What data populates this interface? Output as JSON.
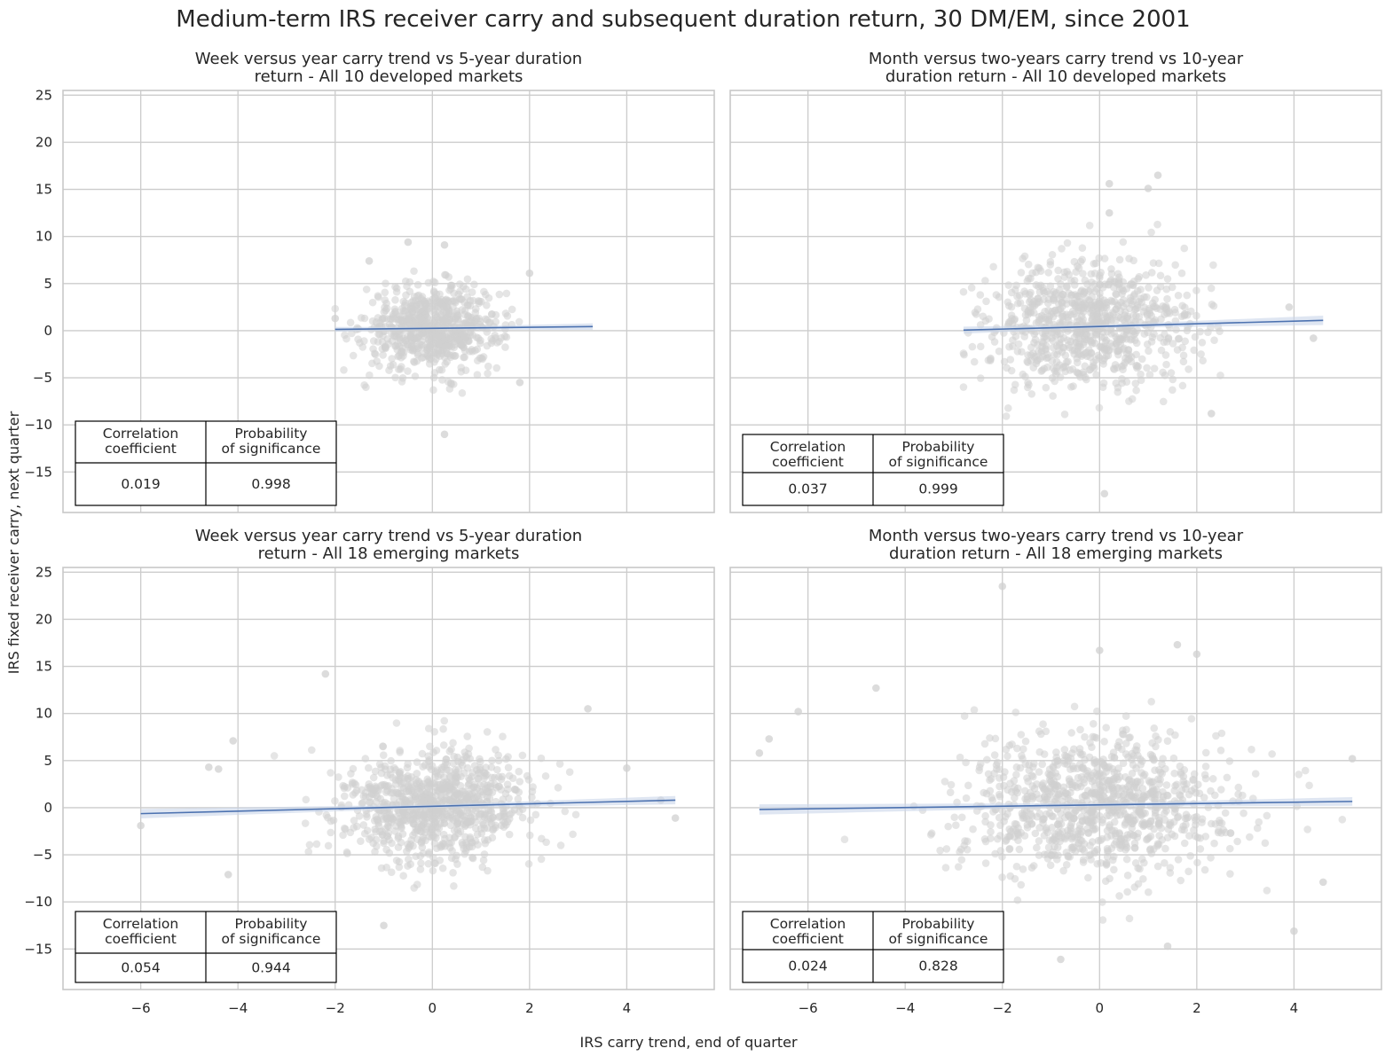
{
  "figure": {
    "title": "Medium-term IRS receiver carry and subsequent duration return, 30 DM/EM, since 2001",
    "xlabel": "IRS carry trend, end of quarter",
    "ylabel": "IRS fixed receiver carry, next quarter"
  },
  "colors": {
    "points": "#d0d0d0",
    "line": "#4c72b0",
    "band": "#c9d6ea"
  },
  "chart_data": [
    {
      "type": "scatter",
      "title_lines": [
        "Week versus year carry trend vs 5-year duration",
        "return - All 10 developed markets"
      ],
      "xlim": [
        -7.6,
        5.8
      ],
      "ylim": [
        -19.3,
        25.5
      ],
      "xticks": [
        -6,
        -4,
        -2,
        0,
        2,
        4
      ],
      "yticks": [
        -15,
        -10,
        -5,
        0,
        5,
        10,
        15,
        20,
        25
      ],
      "show_xticks": false,
      "show_yticks": true,
      "x_range": [
        -2.0,
        3.3
      ],
      "cloud": {
        "cx": 0.0,
        "cy": 0.3,
        "sx": 0.7,
        "sy": 2.2,
        "n": 700
      },
      "outliers": [
        [
          -1.3,
          7.4
        ],
        [
          -0.5,
          9.4
        ],
        [
          0.25,
          9.1
        ],
        [
          2.0,
          6.1
        ],
        [
          0.25,
          -11.0
        ],
        [
          -2.0,
          1.3
        ],
        [
          1.8,
          -5.5
        ]
      ],
      "regression": {
        "intercept": 0.25,
        "slope": 0.055,
        "band": 0.35
      },
      "stats_header": [
        "Correlation\ncoefficient",
        "Probability\nof significance"
      ],
      "stats_values": [
        "0.019",
        "0.998"
      ]
    },
    {
      "type": "scatter",
      "title_lines": [
        "Month versus two-years carry trend vs 10-year",
        "duration return - All 10 developed markets"
      ],
      "xlim": [
        -7.6,
        5.8
      ],
      "ylim": [
        -19.3,
        25.5
      ],
      "xticks": [
        -6,
        -4,
        -2,
        0,
        2,
        4
      ],
      "yticks": [
        -15,
        -10,
        -5,
        0,
        5,
        10,
        15,
        20,
        25
      ],
      "show_xticks": false,
      "show_yticks": false,
      "x_range": [
        -2.8,
        4.6
      ],
      "cloud": {
        "cx": -0.2,
        "cy": 0.6,
        "sx": 1.05,
        "sy": 3.3,
        "n": 850
      },
      "outliers": [
        [
          0.2,
          15.6
        ],
        [
          1.2,
          16.5
        ],
        [
          1.0,
          15.1
        ],
        [
          0.2,
          12.5
        ],
        [
          0.1,
          -17.3
        ],
        [
          3.9,
          2.5
        ],
        [
          4.4,
          -0.8
        ],
        [
          2.3,
          -8.8
        ]
      ],
      "regression": {
        "intercept": 0.45,
        "slope": 0.14,
        "band": 0.5
      },
      "stats_header": [
        "Correlation\ncoefficient",
        "Probability\nof significance"
      ],
      "stats_values": [
        "0.037",
        "0.999"
      ]
    },
    {
      "type": "scatter",
      "title_lines": [
        "Week versus year carry trend vs 5-year duration",
        "return - All 18 emerging markets"
      ],
      "xlim": [
        -7.6,
        5.8
      ],
      "ylim": [
        -19.3,
        25.5
      ],
      "xticks": [
        -6,
        -4,
        -2,
        0,
        2,
        4
      ],
      "yticks": [
        -15,
        -10,
        -5,
        0,
        5,
        10,
        15,
        20,
        25
      ],
      "show_xticks": true,
      "show_yticks": true,
      "x_range": [
        -6.0,
        5.0
      ],
      "cloud": {
        "cx": 0.0,
        "cy": 0.2,
        "sx": 1.0,
        "sy": 3.0,
        "n": 900
      },
      "outliers": [
        [
          -6.0,
          -1.9
        ],
        [
          -4.6,
          4.3
        ],
        [
          -4.4,
          4.1
        ],
        [
          -4.1,
          7.1
        ],
        [
          -4.2,
          -7.1
        ],
        [
          -2.2,
          14.2
        ],
        [
          -1.0,
          -12.5
        ],
        [
          3.2,
          10.5
        ],
        [
          4.0,
          4.2
        ],
        [
          5.0,
          -1.1
        ],
        [
          4.7,
          0.8
        ]
      ],
      "regression": {
        "intercept": 0.15,
        "slope": 0.13,
        "band": 0.5
      },
      "stats_header": [
        "Correlation\ncoefficient",
        "Probability\nof significance"
      ],
      "stats_values": [
        "0.054",
        "0.944"
      ]
    },
    {
      "type": "scatter",
      "title_lines": [
        "Month versus two-years carry trend vs 10-year",
        "duration return - All 18 emerging markets"
      ],
      "xlim": [
        -7.6,
        5.8
      ],
      "ylim": [
        -19.3,
        25.5
      ],
      "xticks": [
        -6,
        -4,
        -2,
        0,
        2,
        4
      ],
      "yticks": [
        -15,
        -10,
        -5,
        0,
        5,
        10,
        15,
        20,
        25
      ],
      "show_xticks": true,
      "show_yticks": false,
      "x_range": [
        -7.0,
        5.2
      ],
      "cloud": {
        "cx": 0.0,
        "cy": 0.3,
        "sx": 1.4,
        "sy": 3.8,
        "n": 1000
      },
      "outliers": [
        [
          -7.0,
          5.8
        ],
        [
          -6.8,
          7.3
        ],
        [
          -6.2,
          10.2
        ],
        [
          -4.6,
          12.7
        ],
        [
          -2.0,
          23.5
        ],
        [
          1.6,
          17.3
        ],
        [
          2.0,
          16.3
        ],
        [
          0.0,
          16.7
        ],
        [
          5.2,
          5.2
        ],
        [
          4.0,
          -13.1
        ],
        [
          4.6,
          -7.9
        ],
        [
          -0.8,
          -16.1
        ],
        [
          1.4,
          -14.7
        ]
      ],
      "regression": {
        "intercept": 0.3,
        "slope": 0.07,
        "band": 0.55
      },
      "stats_header": [
        "Correlation\ncoefficient",
        "Probability\nof significance"
      ],
      "stats_values": [
        "0.024",
        "0.828"
      ]
    }
  ]
}
